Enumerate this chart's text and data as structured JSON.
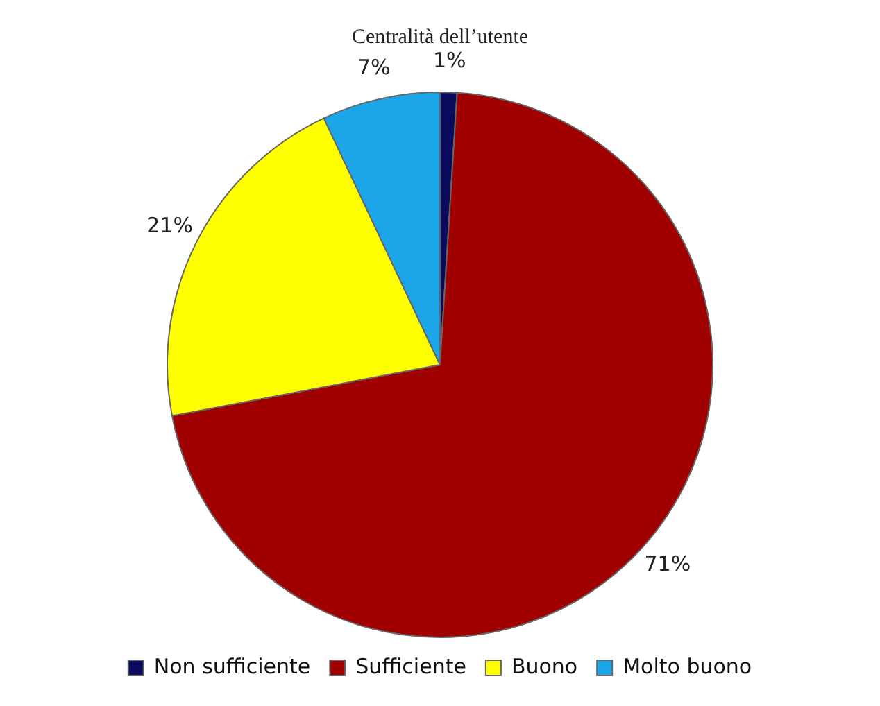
{
  "chart_data": {
    "type": "pie",
    "title": "Centralità dell’utente",
    "categories": [
      "Non sufficiente",
      "Sufficiente",
      "Buono",
      "Molto buono"
    ],
    "values": [
      1,
      71,
      21,
      7
    ],
    "colors": [
      "#0b0b5e",
      "#a00000",
      "#ffff00",
      "#1aa6e8"
    ],
    "value_labels": [
      "1%",
      "71%",
      "21%",
      "7%"
    ],
    "legend": "bottom"
  }
}
